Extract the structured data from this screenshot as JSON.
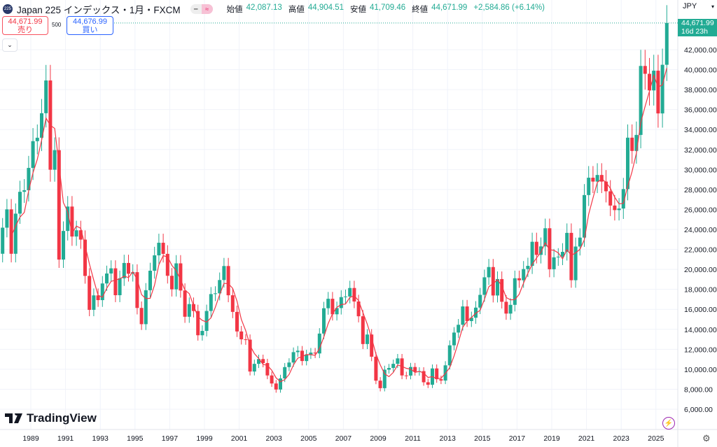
{
  "header": {
    "symbol_badge": "225",
    "title": "Japan 225 インデックス・1月・FXCM",
    "ohlc": [
      {
        "label": "始値",
        "value": "42,087.13"
      },
      {
        "label": "高値",
        "value": "44,904.51"
      },
      {
        "label": "安値",
        "value": "41,709.46"
      },
      {
        "label": "終値",
        "value": "44,671.99"
      }
    ],
    "change": "+2,584.86 (+6.14%)"
  },
  "trade": {
    "sell_price": "44,671.99",
    "sell_label": "売り",
    "spread": "500",
    "buy_price": "44,676.99",
    "buy_label": "買い"
  },
  "currency": "JPY",
  "last_price": {
    "price": "44,671.99",
    "countdown": "16d 23h"
  },
  "brand": "TradingView",
  "colors": {
    "up": "#22ab94",
    "down": "#f23645",
    "ma": "#f23645",
    "grid": "#f0f3fa"
  },
  "chart_data": {
    "type": "candlestick",
    "interval": "quarterly closes (approx. from monthly chart)",
    "start": "1987-Q1",
    "initial_open": 18800,
    "closes": [
      21566,
      24176,
      26011,
      21564,
      25581,
      27769,
      27924,
      30159,
      32839,
      33183,
      35637,
      38916,
      29980,
      31940,
      20984,
      23849,
      26292,
      23291,
      23916,
      22984,
      19346,
      15951,
      17399,
      16925,
      18591,
      19590,
      20106,
      17417,
      19112,
      20644,
      19564,
      19723,
      16140,
      14517,
      17913,
      19868,
      21407,
      22667,
      21556,
      19361,
      18003,
      20605,
      17888,
      15259,
      16527,
      15830,
      13406,
      13842,
      15837,
      17530,
      17605,
      18934,
      20337,
      17411,
      15747,
      13786,
      12999,
      12969,
      9775,
      10543,
      11025,
      10622,
      9383,
      8579,
      7973,
      9083,
      10219,
      10677,
      11715,
      11859,
      10824,
      11489,
      11669,
      11584,
      13574,
      16111,
      17059,
      15505,
      16128,
      17226,
      17288,
      18138,
      16786,
      15308,
      12526,
      13481,
      11260,
      8860,
      8110,
      9958,
      10133,
      10546,
      11090,
      9383,
      9369,
      10229,
      9755,
      9816,
      8700,
      8455,
      10084,
      9007,
      8870,
      10395,
      12398,
      13677,
      14456,
      16291,
      14828,
      15162,
      16174,
      17451,
      19207,
      20236,
      17388,
      19034,
      16759,
      15576,
      16450,
      19114,
      18909,
      20033,
      20356,
      22765,
      21454,
      22305,
      24120,
      20015,
      21206,
      21276,
      21756,
      23657,
      18917,
      22288,
      23185,
      27444,
      29179,
      28792,
      29453,
      28792,
      27821,
      26393,
      25937,
      26095,
      28041,
      33189,
      31858,
      33464,
      40369,
      39583,
      37920,
      39895,
      35617,
      40487,
      44672
    ],
    "ma_period_points": 4,
    "x_ticks": [
      "1989",
      "1991",
      "1993",
      "1995",
      "1997",
      "1999",
      "2001",
      "2003",
      "2005",
      "2007",
      "2009",
      "2011",
      "2013",
      "2015",
      "2017",
      "2019",
      "2021",
      "2023",
      "2025"
    ],
    "y_ticks": [
      "6,000.00",
      "8,000.00",
      "10,000.00",
      "12,000.00",
      "14,000.00",
      "16,000.00",
      "18,000.00",
      "20,000.00",
      "22,000.00",
      "24,000.00",
      "26,000.00",
      "28,000.00",
      "30,000.00",
      "32,000.00",
      "34,000.00",
      "36,000.00",
      "38,000.00",
      "40,000.00",
      "42,000.00"
    ],
    "ylim": [
      6000,
      42000
    ]
  }
}
